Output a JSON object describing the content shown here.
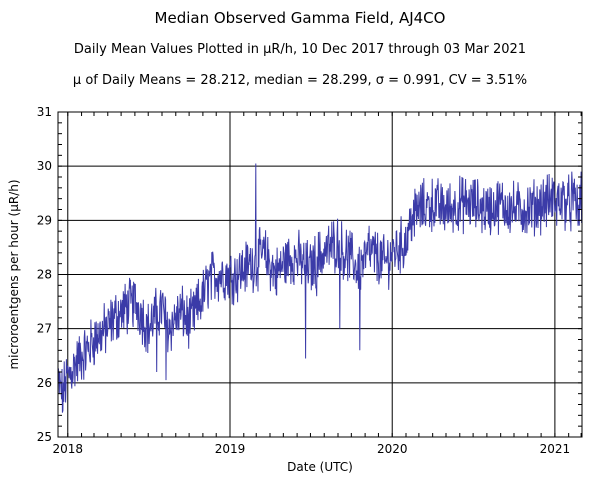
{
  "chart_data": {
    "type": "line",
    "title": "Median Observed Gamma Field, AJ4CO",
    "subtitle": "Daily Mean Values Plotted in μR/h, 10 Dec 2017 through 03 Mar 2021",
    "stats_line": "μ of Daily Means = 28.212,   median = 28.299,   σ = 0.991,   CV = 3.51%",
    "xlabel": "Date (UTC)",
    "ylabel": "microroentgens per hour (μR/h)",
    "x_start": "2017-12-10",
    "x_end": "2021-03-03",
    "ylim": [
      25,
      31
    ],
    "yticks": [
      25,
      26,
      27,
      28,
      29,
      30,
      31
    ],
    "xticks": [
      {
        "label": "2018",
        "date": "2018-01-01"
      },
      {
        "label": "2019",
        "date": "2019-01-01"
      },
      {
        "label": "2020",
        "date": "2020-01-01"
      },
      {
        "label": "2021",
        "date": "2021-01-01"
      }
    ],
    "grid": true,
    "line_color": "#3b3ba8",
    "series": [
      {
        "points": [
          [
            "2017-12-10",
            26.0
          ],
          [
            "2017-12-20",
            25.8
          ],
          [
            "2017-12-31",
            26.1
          ],
          [
            "2018-01-15",
            26.3
          ],
          [
            "2018-02-01",
            26.5
          ],
          [
            "2018-02-15",
            26.6
          ],
          [
            "2018-03-01",
            26.8
          ],
          [
            "2018-03-15",
            26.9
          ],
          [
            "2018-04-01",
            27.0
          ],
          [
            "2018-04-15",
            27.2
          ],
          [
            "2018-05-01",
            27.3
          ],
          [
            "2018-05-15",
            27.4
          ],
          [
            "2018-06-01",
            27.5
          ],
          [
            "2018-06-15",
            27.3
          ],
          [
            "2018-07-01",
            27.0
          ],
          [
            "2018-07-15",
            27.2
          ],
          [
            "2018-08-01",
            27.4
          ],
          [
            "2018-08-15",
            27.0
          ],
          [
            "2018-09-01",
            27.2
          ],
          [
            "2018-09-15",
            27.3
          ],
          [
            "2018-10-01",
            27.1
          ],
          [
            "2018-10-15",
            27.3
          ],
          [
            "2018-11-01",
            27.6
          ],
          [
            "2018-11-15",
            27.9
          ],
          [
            "2018-12-01",
            28.0
          ],
          [
            "2018-12-15",
            28.0
          ],
          [
            "2019-01-01",
            28.0
          ],
          [
            "2019-01-15",
            28.0
          ],
          [
            "2019-02-01",
            28.1
          ],
          [
            "2019-02-15",
            28.2
          ],
          [
            "2019-03-01",
            28.2
          ],
          [
            "2019-03-15",
            28.4
          ],
          [
            "2019-04-01",
            28.2
          ],
          [
            "2019-04-15",
            28.0
          ],
          [
            "2019-05-01",
            28.2
          ],
          [
            "2019-05-15",
            28.3
          ],
          [
            "2019-06-01",
            28.3
          ],
          [
            "2019-06-15",
            28.2
          ],
          [
            "2019-07-01",
            28.1
          ],
          [
            "2019-07-15",
            28.3
          ],
          [
            "2019-08-01",
            28.4
          ],
          [
            "2019-08-15",
            28.5
          ],
          [
            "2019-09-01",
            28.6
          ],
          [
            "2019-09-15",
            28.4
          ],
          [
            "2019-10-01",
            28.3
          ],
          [
            "2019-10-15",
            28.1
          ],
          [
            "2019-11-01",
            28.3
          ],
          [
            "2019-11-15",
            28.4
          ],
          [
            "2019-12-01",
            28.3
          ],
          [
            "2019-12-15",
            28.2
          ],
          [
            "2020-01-01",
            28.4
          ],
          [
            "2020-01-15",
            28.5
          ],
          [
            "2020-02-01",
            28.6
          ],
          [
            "2020-02-15",
            29.1
          ],
          [
            "2020-03-01",
            29.2
          ],
          [
            "2020-04-01",
            29.3
          ],
          [
            "2020-05-01",
            29.2
          ],
          [
            "2020-06-01",
            29.3
          ],
          [
            "2020-07-01",
            29.3
          ],
          [
            "2020-08-01",
            29.2
          ],
          [
            "2020-09-01",
            29.3
          ],
          [
            "2020-10-01",
            29.2
          ],
          [
            "2020-11-01",
            29.2
          ],
          [
            "2020-12-01",
            29.3
          ],
          [
            "2021-01-01",
            29.4
          ],
          [
            "2021-01-15",
            29.4
          ],
          [
            "2021-02-01",
            29.3
          ],
          [
            "2021-02-15",
            29.3
          ],
          [
            "2021-03-03",
            29.2
          ]
        ]
      }
    ],
    "spikes": [
      [
        "2017-12-20",
        25.45
      ],
      [
        "2018-08-10",
        26.05
      ],
      [
        "2018-07-20",
        26.2
      ],
      [
        "2019-02-28",
        30.05
      ],
      [
        "2019-06-20",
        26.45
      ],
      [
        "2019-07-15",
        27.6
      ],
      [
        "2019-09-05",
        27.0
      ],
      [
        "2019-10-20",
        26.6
      ],
      [
        "2019-11-10",
        28.9
      ],
      [
        "2020-02-20",
        28.7
      ],
      [
        "2021-01-05",
        28.9
      ],
      [
        "2021-02-08",
        29.9
      ],
      [
        "2021-02-22",
        28.9
      ],
      [
        "2021-03-01",
        29.9
      ]
    ]
  }
}
